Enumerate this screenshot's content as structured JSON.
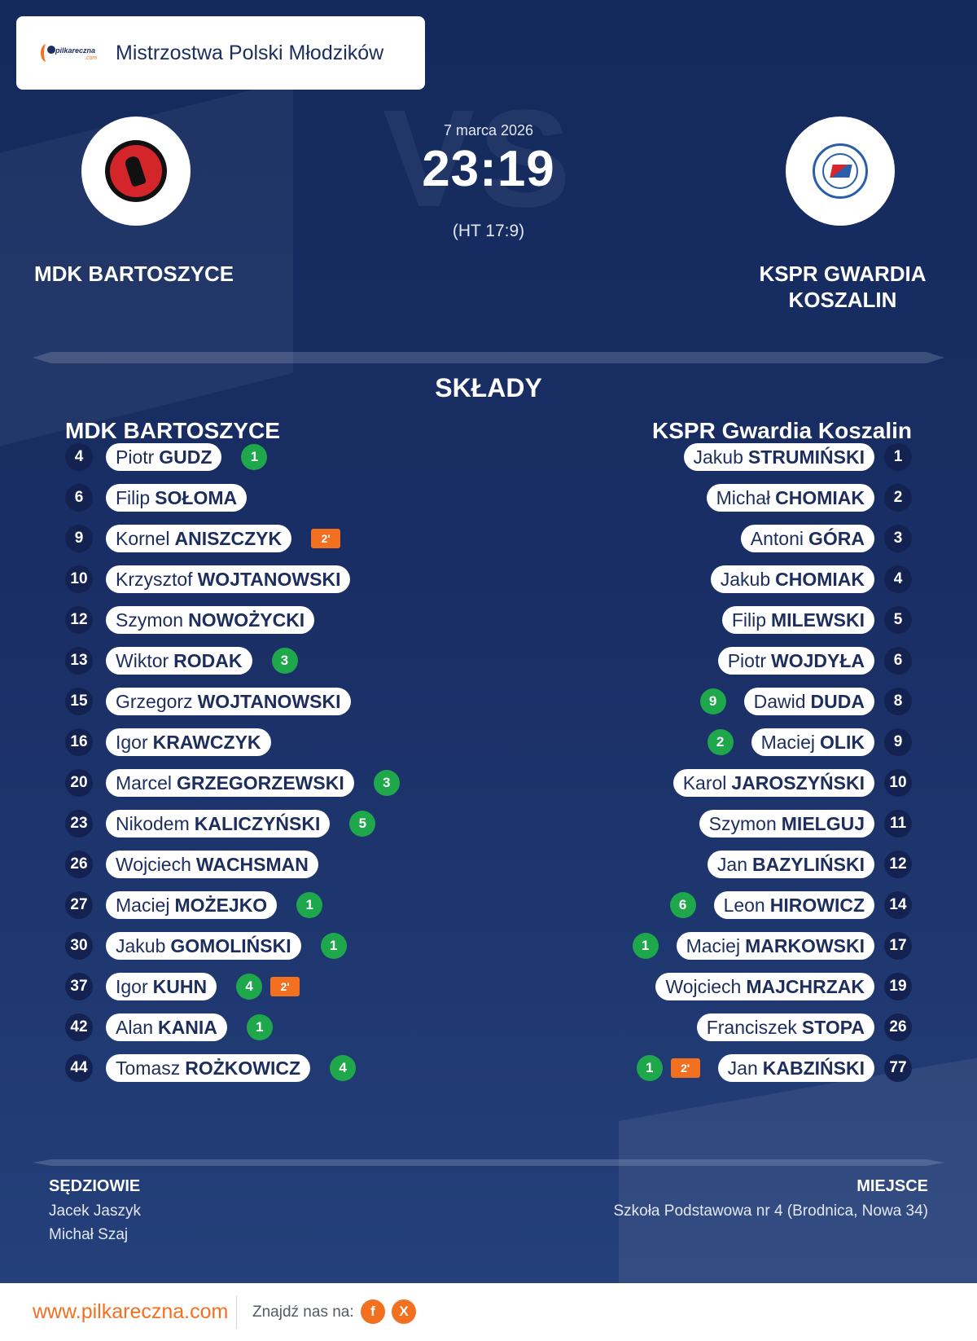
{
  "header": {
    "logo_text": "pilkareczna",
    "logo_sub": ".com",
    "competition": "Mistrzostwa Polski Młodzików"
  },
  "match": {
    "date": "7 marca 2026",
    "score": "23:19",
    "halftime": "(HT 17:9)",
    "vs_watermark": "VS",
    "home_name": "MDK BARTOSZYCE",
    "away_name": "KSPR GWARDIA KOSZALIN"
  },
  "squads": {
    "title": "SKŁADY",
    "home_title": "MDK BARTOSZYCE",
    "away_title": "KSPR Gwardia Koszalin",
    "home_players": [
      {
        "num": "4",
        "first": "Piotr",
        "last": "GUDZ",
        "goals": "1",
        "susp": ""
      },
      {
        "num": "6",
        "first": "Filip",
        "last": "SOŁOMA",
        "goals": "",
        "susp": ""
      },
      {
        "num": "9",
        "first": "Kornel",
        "last": "ANISZCZYK",
        "goals": "",
        "susp": "2'"
      },
      {
        "num": "10",
        "first": "Krzysztof",
        "last": "WOJTANOWSKI",
        "goals": "",
        "susp": ""
      },
      {
        "num": "12",
        "first": "Szymon",
        "last": "NOWOŻYCKI",
        "goals": "",
        "susp": ""
      },
      {
        "num": "13",
        "first": "Wiktor",
        "last": "RODAK",
        "goals": "3",
        "susp": ""
      },
      {
        "num": "15",
        "first": "Grzegorz",
        "last": "WOJTANOWSKI",
        "goals": "",
        "susp": ""
      },
      {
        "num": "16",
        "first": "Igor",
        "last": "KRAWCZYK",
        "goals": "",
        "susp": ""
      },
      {
        "num": "20",
        "first": "Marcel",
        "last": "GRZEGORZEWSKI",
        "goals": "3",
        "susp": ""
      },
      {
        "num": "23",
        "first": "Nikodem",
        "last": "KALICZYŃSKI",
        "goals": "5",
        "susp": ""
      },
      {
        "num": "26",
        "first": "Wojciech",
        "last": "WACHSMAN",
        "goals": "",
        "susp": ""
      },
      {
        "num": "27",
        "first": "Maciej",
        "last": "MOŻEJKO",
        "goals": "1",
        "susp": ""
      },
      {
        "num": "30",
        "first": "Jakub",
        "last": "GOMOLIŃSKI",
        "goals": "1",
        "susp": ""
      },
      {
        "num": "37",
        "first": "Igor",
        "last": "KUHN",
        "goals": "4",
        "susp": "2'"
      },
      {
        "num": "42",
        "first": "Alan",
        "last": "KANIA",
        "goals": "1",
        "susp": ""
      },
      {
        "num": "44",
        "first": "Tomasz",
        "last": "ROŻKOWICZ",
        "goals": "4",
        "susp": ""
      }
    ],
    "away_players": [
      {
        "num": "1",
        "first": "Jakub",
        "last": "STRUMIŃSKI",
        "goals": "",
        "susp": ""
      },
      {
        "num": "2",
        "first": "Michał",
        "last": "CHOMIAK",
        "goals": "",
        "susp": ""
      },
      {
        "num": "3",
        "first": "Antoni",
        "last": "GÓRA",
        "goals": "",
        "susp": ""
      },
      {
        "num": "4",
        "first": "Jakub",
        "last": "CHOMIAK",
        "goals": "",
        "susp": ""
      },
      {
        "num": "5",
        "first": "Filip",
        "last": "MILEWSKI",
        "goals": "",
        "susp": ""
      },
      {
        "num": "6",
        "first": "Piotr",
        "last": "WOJDYŁA",
        "goals": "",
        "susp": ""
      },
      {
        "num": "8",
        "first": "Dawid",
        "last": "DUDA",
        "goals": "9",
        "susp": ""
      },
      {
        "num": "9",
        "first": "Maciej",
        "last": "OLIK",
        "goals": "2",
        "susp": ""
      },
      {
        "num": "10",
        "first": "Karol",
        "last": "JAROSZYŃSKI",
        "goals": "",
        "susp": ""
      },
      {
        "num": "11",
        "first": "Szymon",
        "last": "MIELGUJ",
        "goals": "",
        "susp": ""
      },
      {
        "num": "12",
        "first": "Jan",
        "last": "BAZYLIŃSKI",
        "goals": "",
        "susp": ""
      },
      {
        "num": "14",
        "first": "Leon",
        "last": "HIROWICZ",
        "goals": "6",
        "susp": ""
      },
      {
        "num": "17",
        "first": "Maciej",
        "last": "MARKOWSKI",
        "goals": "1",
        "susp": ""
      },
      {
        "num": "19",
        "first": "Wojciech",
        "last": "MAJCHRZAK",
        "goals": "",
        "susp": ""
      },
      {
        "num": "26",
        "first": "Franciszek",
        "last": "STOPA",
        "goals": "",
        "susp": ""
      },
      {
        "num": "77",
        "first": "Jan",
        "last": "KABZIŃSKI",
        "goals": "1",
        "susp": "2'"
      }
    ]
  },
  "officials": {
    "referees_label": "SĘDZIOWIE",
    "referees": [
      "Jacek Jaszyk",
      "Michał Szaj"
    ],
    "venue_label": "MIEJSCE",
    "venue": "Szkoła Podstawowa nr 4 (Brodnica, Nowa 34)"
  },
  "footer": {
    "site": "www.pilkareczna.com",
    "find_us": "Znajdź nas na:",
    "social": [
      {
        "icon": "facebook-icon",
        "glyph": "f"
      },
      {
        "icon": "x-icon",
        "glyph": "X"
      }
    ]
  },
  "colors": {
    "background": "#18295a",
    "accent": "#f37021",
    "goal_badge": "#1fa74b",
    "text_dark": "#1c2d5e"
  }
}
